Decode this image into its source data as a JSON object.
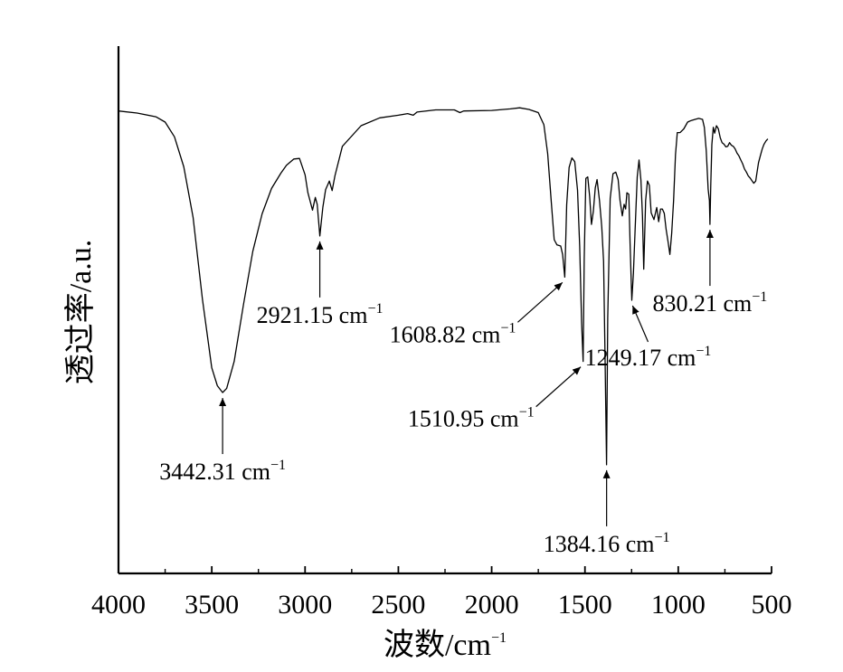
{
  "chart_data": {
    "type": "line",
    "xlabel": "波数/cm",
    "xlabel_sup": "−1",
    "ylabel": "透过率/a.u.",
    "xlim": [
      4000,
      500
    ],
    "x_reversed": true,
    "ylim": [
      0,
      100
    ],
    "grid": false,
    "legend": "none",
    "x_ticks": [
      "4000",
      "3500",
      "3000",
      "2500",
      "2000",
      "1500",
      "1000",
      "500"
    ],
    "x_tick_values": [
      4000,
      3500,
      3000,
      2500,
      2000,
      1500,
      1000,
      500
    ],
    "series": [
      {
        "color": "#000000",
        "points": [
          [
            4000,
            87.7
          ],
          [
            3900,
            87.3
          ],
          [
            3800,
            86.6
          ],
          [
            3750,
            85.6
          ],
          [
            3700,
            82.8
          ],
          [
            3650,
            77.1
          ],
          [
            3600,
            67.5
          ],
          [
            3550,
            52.0
          ],
          [
            3500,
            39.0
          ],
          [
            3470,
            35.6
          ],
          [
            3442,
            34.3
          ],
          [
            3420,
            35.1
          ],
          [
            3380,
            40.2
          ],
          [
            3330,
            51.0
          ],
          [
            3280,
            61.1
          ],
          [
            3230,
            68.2
          ],
          [
            3180,
            73.0
          ],
          [
            3130,
            75.9
          ],
          [
            3100,
            77.4
          ],
          [
            3060,
            78.6
          ],
          [
            3030,
            78.7
          ],
          [
            3000,
            75.6
          ],
          [
            2985,
            72.2
          ],
          [
            2960,
            68.9
          ],
          [
            2945,
            71.3
          ],
          [
            2935,
            70.0
          ],
          [
            2921,
            64.0
          ],
          [
            2905,
            69.4
          ],
          [
            2890,
            72.8
          ],
          [
            2870,
            74.4
          ],
          [
            2855,
            72.6
          ],
          [
            2840,
            75.4
          ],
          [
            2800,
            81.0
          ],
          [
            2700,
            84.9
          ],
          [
            2600,
            86.4
          ],
          [
            2500,
            86.9
          ],
          [
            2450,
            87.2
          ],
          [
            2420,
            86.9
          ],
          [
            2400,
            87.5
          ],
          [
            2300,
            87.9
          ],
          [
            2200,
            87.9
          ],
          [
            2170,
            87.4
          ],
          [
            2150,
            87.7
          ],
          [
            2000,
            87.8
          ],
          [
            1900,
            88.1
          ],
          [
            1850,
            88.3
          ],
          [
            1800,
            88.0
          ],
          [
            1750,
            87.4
          ],
          [
            1720,
            85.1
          ],
          [
            1700,
            79.6
          ],
          [
            1680,
            70.2
          ],
          [
            1665,
            63.3
          ],
          [
            1650,
            62.3
          ],
          [
            1630,
            62.1
          ],
          [
            1620,
            60.5
          ],
          [
            1608,
            56.2
          ],
          [
            1598,
            69.9
          ],
          [
            1585,
            77.0
          ],
          [
            1570,
            78.8
          ],
          [
            1555,
            78.1
          ],
          [
            1540,
            72.7
          ],
          [
            1528,
            62.0
          ],
          [
            1518,
            47.6
          ],
          [
            1510,
            40.2
          ],
          [
            1504,
            59.7
          ],
          [
            1495,
            74.9
          ],
          [
            1485,
            75.2
          ],
          [
            1475,
            71.5
          ],
          [
            1465,
            66.2
          ],
          [
            1455,
            68.7
          ],
          [
            1445,
            73.1
          ],
          [
            1435,
            74.7
          ],
          [
            1422,
            70.7
          ],
          [
            1410,
            65.7
          ],
          [
            1400,
            59.2
          ],
          [
            1392,
            40.2
          ],
          [
            1384,
            20.6
          ],
          [
            1378,
            48.5
          ],
          [
            1365,
            71.1
          ],
          [
            1350,
            75.8
          ],
          [
            1335,
            76.1
          ],
          [
            1322,
            74.7
          ],
          [
            1312,
            70.7
          ],
          [
            1300,
            67.8
          ],
          [
            1290,
            70.0
          ],
          [
            1282,
            69.1
          ],
          [
            1275,
            72.2
          ],
          [
            1265,
            71.9
          ],
          [
            1258,
            62.6
          ],
          [
            1249,
            51.8
          ],
          [
            1240,
            57.0
          ],
          [
            1230,
            66.2
          ],
          [
            1220,
            75.2
          ],
          [
            1210,
            78.4
          ],
          [
            1200,
            74.6
          ],
          [
            1192,
            67.8
          ],
          [
            1185,
            57.7
          ],
          [
            1175,
            70.7
          ],
          [
            1165,
            74.4
          ],
          [
            1155,
            73.6
          ],
          [
            1145,
            68.4
          ],
          [
            1130,
            67.1
          ],
          [
            1115,
            69.4
          ],
          [
            1105,
            66.7
          ],
          [
            1095,
            69.1
          ],
          [
            1085,
            69.1
          ],
          [
            1075,
            68.3
          ],
          [
            1065,
            65.3
          ],
          [
            1055,
            63.0
          ],
          [
            1045,
            60.5
          ],
          [
            1035,
            64.5
          ],
          [
            1025,
            70.7
          ],
          [
            1015,
            79.4
          ],
          [
            1005,
            83.6
          ],
          [
            990,
            83.6
          ],
          [
            970,
            84.3
          ],
          [
            950,
            85.6
          ],
          [
            930,
            85.9
          ],
          [
            910,
            86.1
          ],
          [
            890,
            86.3
          ],
          [
            870,
            86.1
          ],
          [
            860,
            84.6
          ],
          [
            850,
            80.2
          ],
          [
            840,
            72.9
          ],
          [
            833,
            70.7
          ],
          [
            830,
            66.2
          ],
          [
            826,
            73.6
          ],
          [
            820,
            81.3
          ],
          [
            812,
            84.6
          ],
          [
            805,
            83.5
          ],
          [
            795,
            84.9
          ],
          [
            785,
            84.3
          ],
          [
            775,
            82.6
          ],
          [
            765,
            81.7
          ],
          [
            755,
            81.4
          ],
          [
            745,
            80.9
          ],
          [
            735,
            81.0
          ],
          [
            725,
            81.7
          ],
          [
            715,
            81.2
          ],
          [
            705,
            81.0
          ],
          [
            695,
            80.5
          ],
          [
            685,
            79.7
          ],
          [
            675,
            79.2
          ],
          [
            665,
            78.4
          ],
          [
            655,
            77.7
          ],
          [
            645,
            76.7
          ],
          [
            635,
            76.1
          ],
          [
            625,
            75.4
          ],
          [
            615,
            75.0
          ],
          [
            605,
            74.5
          ],
          [
            595,
            74.0
          ],
          [
            585,
            74.4
          ],
          [
            578,
            76.0
          ],
          [
            570,
            77.9
          ],
          [
            560,
            79.2
          ],
          [
            550,
            80.5
          ],
          [
            540,
            81.4
          ],
          [
            530,
            82.0
          ],
          [
            520,
            82.4
          ]
        ]
      }
    ],
    "annotations": [
      {
        "value": "3442.31 cm",
        "sup": "−1",
        "tip": [
          3442,
          34.3
        ],
        "anchor": "below",
        "text_align": "middle"
      },
      {
        "value": "2921.15 cm",
        "sup": "−1",
        "tip": [
          2921,
          64.0
        ],
        "anchor": "below",
        "text_align": "middle"
      },
      {
        "value": "1608.82 cm",
        "sup": "−1",
        "tip": [
          1608,
          56.2
        ],
        "anchor": "below-left",
        "text_align": "end"
      },
      {
        "value": "1510.95 cm",
        "sup": "−1",
        "tip": [
          1510,
          40.2
        ],
        "anchor": "below-left",
        "text_align": "end"
      },
      {
        "value": "1384.16 cm",
        "sup": "−1",
        "tip": [
          1384,
          20.6
        ],
        "anchor": "below",
        "text_align": "middle"
      },
      {
        "value": "1249.17 cm",
        "sup": "−1",
        "tip": [
          1249,
          51.8
        ],
        "anchor": "below-right",
        "text_align": "middle"
      },
      {
        "value": "830.21 cm",
        "sup": "−1",
        "tip": [
          830,
          66.2
        ],
        "anchor": "below",
        "text_align": "middle"
      }
    ]
  }
}
